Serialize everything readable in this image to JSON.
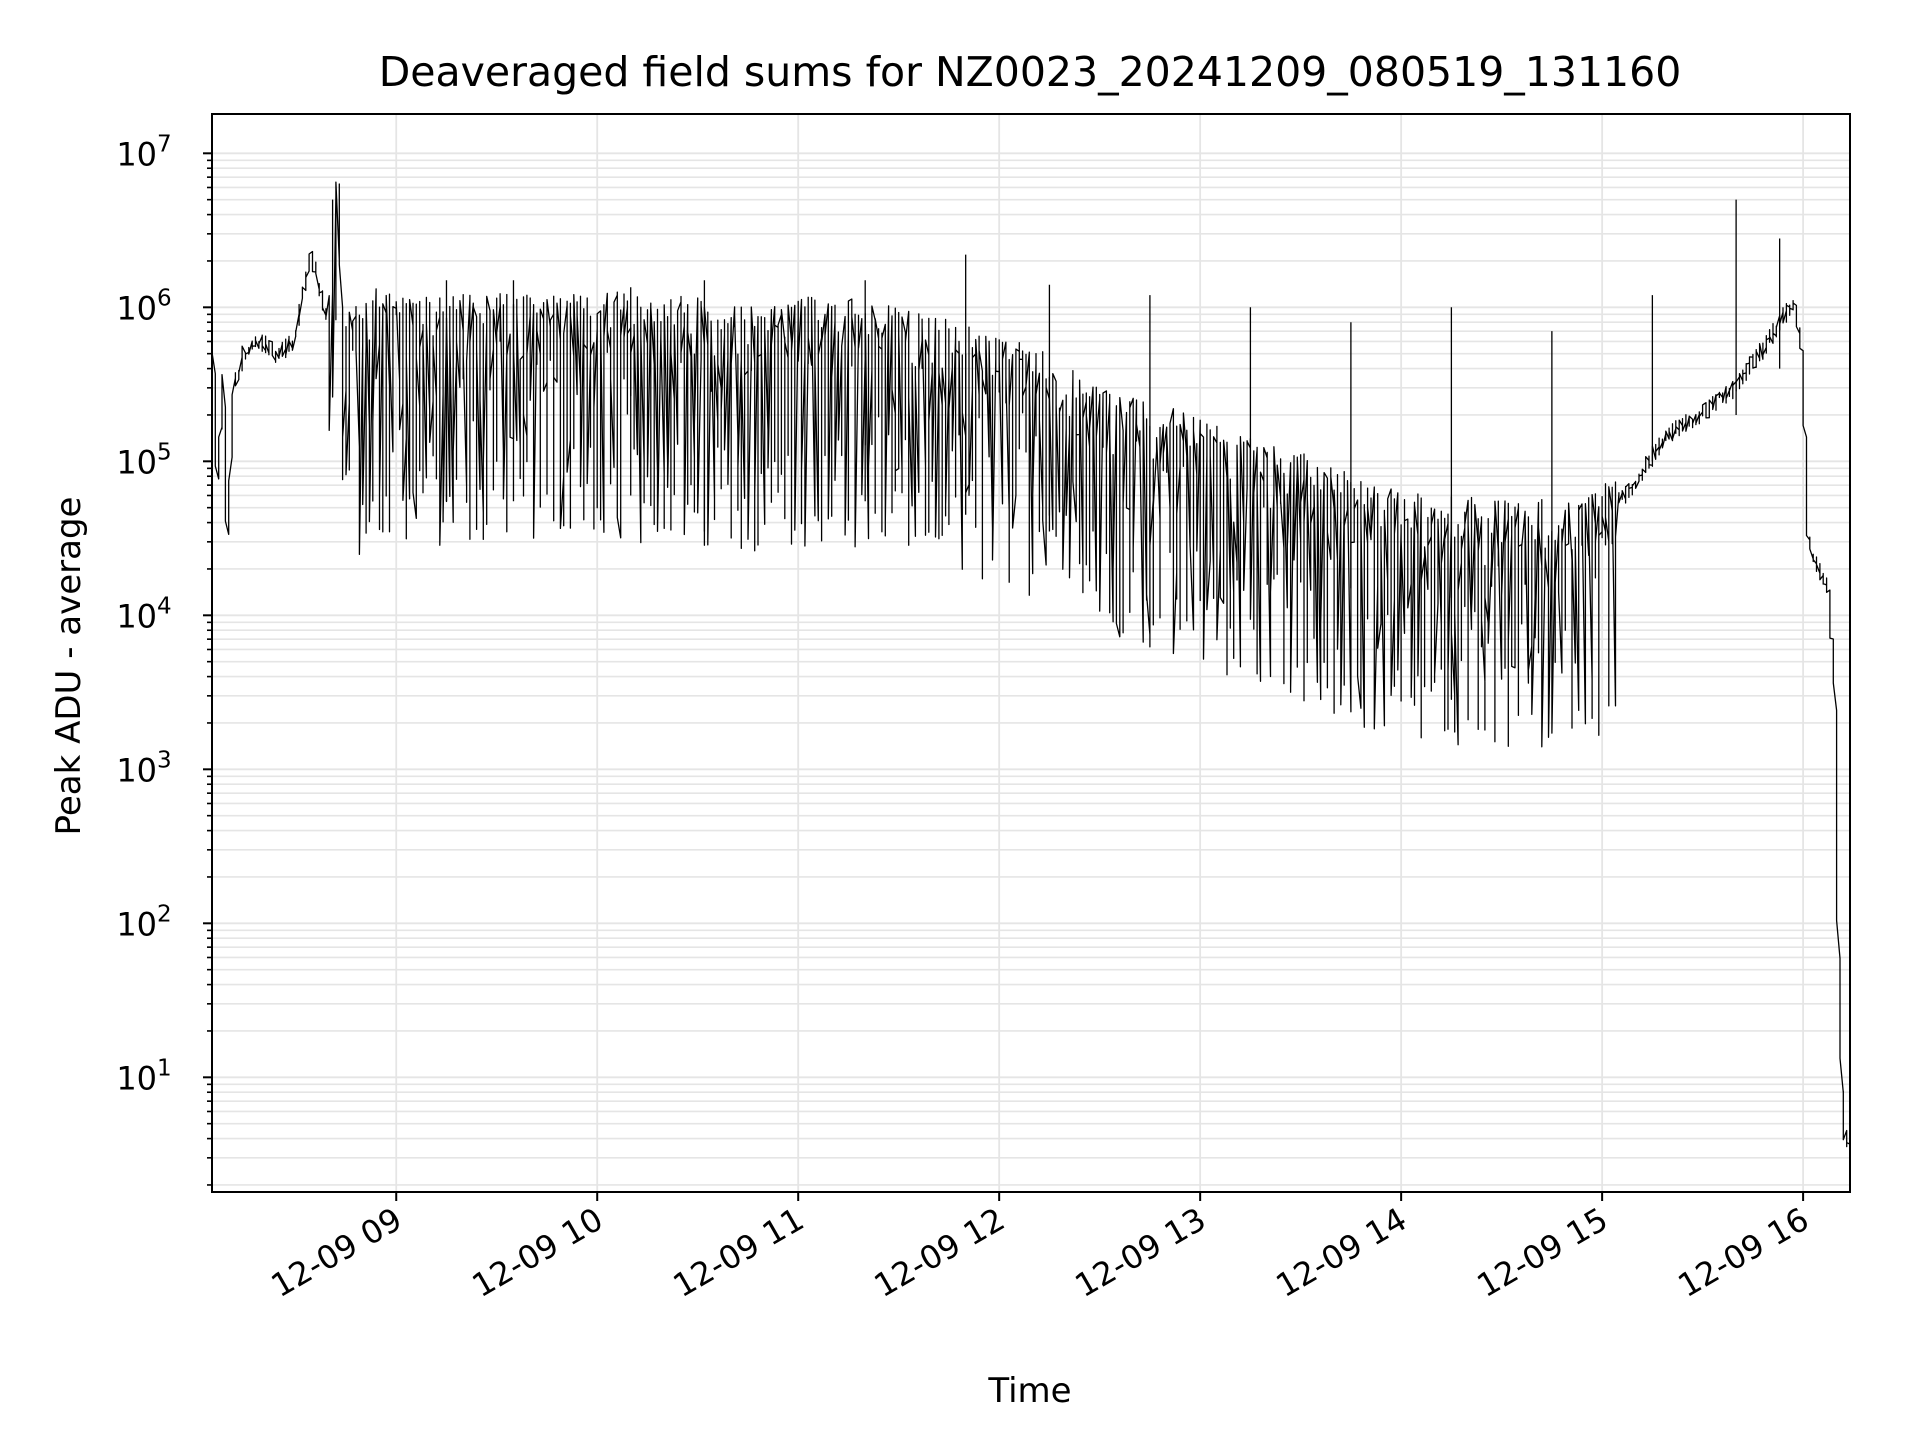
{
  "chart_data": {
    "type": "line",
    "title": "Deaveraged field sums for NZ0023_20241209_080519_131160",
    "xlabel": "Time",
    "ylabel": "Peak ADU - average",
    "x_scale": "time",
    "y_scale": "log",
    "xlim": [
      "2024-12-09 08:05",
      "2024-12-09 16:14"
    ],
    "ylim": [
      1.8,
      18000000
    ],
    "x_ticks": [
      "2024-12-09 09:00",
      "2024-12-09 10:00",
      "2024-12-09 11:00",
      "2024-12-09 12:00",
      "2024-12-09 13:00",
      "2024-12-09 14:00",
      "2024-12-09 15:00",
      "2024-12-09 16:00"
    ],
    "x_tick_labels": [
      "12-09 09",
      "12-09 10",
      "12-09 11",
      "12-09 12",
      "12-09 13",
      "12-09 14",
      "12-09 15",
      "12-09 16"
    ],
    "y_ticks": [
      10,
      100,
      1000,
      10000,
      100000,
      1000000,
      10000000
    ],
    "y_tick_labels": [
      {
        "base": "10",
        "exp": "1"
      },
      {
        "base": "10",
        "exp": "2"
      },
      {
        "base": "10",
        "exp": "3"
      },
      {
        "base": "10",
        "exp": "4"
      },
      {
        "base": "10",
        "exp": "5"
      },
      {
        "base": "10",
        "exp": "6"
      },
      {
        "base": "10",
        "exp": "7"
      }
    ],
    "grid": true,
    "line_color": "#000000",
    "grid_color": "#e5e5e5",
    "series": [
      {
        "x": [
          "2024-12-09 08:05",
          "2024-12-09 08:06",
          "2024-12-09 08:07",
          "2024-12-09 08:09",
          "2024-12-09 08:10",
          "2024-12-09 08:12",
          "2024-12-09 08:15",
          "2024-12-09 08:20",
          "2024-12-09 08:25",
          "2024-12-09 08:30",
          "2024-12-09 08:35",
          "2024-12-09 08:40",
          "2024-12-09 08:43",
          "2024-12-09 08:45",
          "2024-12-09 08:48",
          "2024-12-09 08:50",
          "2024-12-09 08:53",
          "2024-12-09 08:56",
          "2024-12-09 09:00",
          "2024-12-09 09:15",
          "2024-12-09 09:30",
          "2024-12-09 09:45",
          "2024-12-09 10:00",
          "2024-12-09 10:15",
          "2024-12-09 10:30",
          "2024-12-09 10:45",
          "2024-12-09 11:00",
          "2024-12-09 11:15",
          "2024-12-09 11:30",
          "2024-12-09 11:45",
          "2024-12-09 12:00",
          "2024-12-09 12:15",
          "2024-12-09 12:30",
          "2024-12-09 12:45",
          "2024-12-09 13:00",
          "2024-12-09 13:15",
          "2024-12-09 13:30",
          "2024-12-09 13:45",
          "2024-12-09 14:00",
          "2024-12-09 14:15",
          "2024-12-09 14:30",
          "2024-12-09 14:45",
          "2024-12-09 15:00",
          "2024-12-09 15:10",
          "2024-12-09 15:20",
          "2024-12-09 15:30",
          "2024-12-09 15:40",
          "2024-12-09 15:50",
          "2024-12-09 15:55",
          "2024-12-09 15:58",
          "2024-12-09 16:00",
          "2024-12-09 16:02",
          "2024-12-09 16:05",
          "2024-12-09 16:08",
          "2024-12-09 16:10",
          "2024-12-09 16:11",
          "2024-12-09 16:12",
          "2024-12-09 16:13",
          "2024-12-09 16:14"
        ],
        "y": [
          600000,
          500000,
          70000,
          350000,
          30000,
          300000,
          500000,
          600000,
          500000,
          600000,
          2200000,
          800000,
          9000000,
          400000,
          700000,
          500000,
          900000,
          700000,
          800000,
          700000,
          800000,
          700000,
          800000,
          700000,
          700000,
          600000,
          700000,
          700000,
          600000,
          500000,
          400000,
          300000,
          180000,
          150000,
          120000,
          90000,
          70000,
          50000,
          40000,
          35000,
          35000,
          35000,
          40000,
          70000,
          150000,
          200000,
          300000,
          600000,
          900000,
          1000000,
          600000,
          30000,
          20000,
          15000,
          3000,
          100,
          10,
          4,
          4
        ]
      }
    ],
    "spikes": [
      {
        "x": "2024-12-09 09:15",
        "y_low": 55000,
        "y_high": 1500000
      },
      {
        "x": "2024-12-09 09:35",
        "y_low": 55000,
        "y_high": 1500000
      },
      {
        "x": "2024-12-09 10:10",
        "y_low": 60000,
        "y_high": 1350000
      },
      {
        "x": "2024-12-09 10:32",
        "y_low": 35000,
        "y_high": 1500000
      },
      {
        "x": "2024-12-09 11:20",
        "y_low": 55000,
        "y_high": 1500000
      },
      {
        "x": "2024-12-09 11:50",
        "y_low": 45000,
        "y_high": 2200000
      },
      {
        "x": "2024-12-09 12:15",
        "y_low": 35000,
        "y_high": 1400000
      },
      {
        "x": "2024-12-09 12:45",
        "y_low": 30000,
        "y_high": 1200000
      },
      {
        "x": "2024-12-09 13:15",
        "y_low": 20000,
        "y_high": 1000000
      },
      {
        "x": "2024-12-09 13:45",
        "y_low": 15000,
        "y_high": 800000
      },
      {
        "x": "2024-12-09 14:15",
        "y_low": 13000,
        "y_high": 1000000
      },
      {
        "x": "2024-12-09 14:45",
        "y_low": 14000,
        "y_high": 700000
      },
      {
        "x": "2024-12-09 15:15",
        "y_low": 100000,
        "y_high": 1200000
      },
      {
        "x": "2024-12-09 15:40",
        "y_low": 200000,
        "y_high": 5000000
      },
      {
        "x": "2024-12-09 15:53",
        "y_low": 400000,
        "y_high": 2800000
      }
    ]
  }
}
